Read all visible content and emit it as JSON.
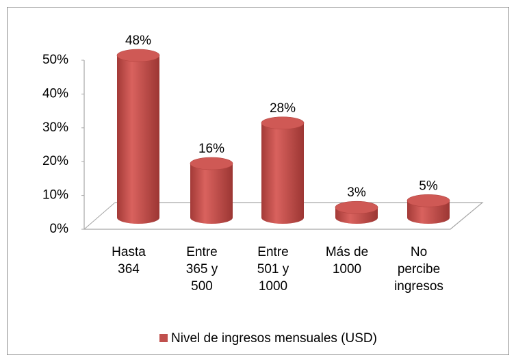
{
  "chart_data": {
    "type": "cylinder",
    "categories": [
      "Hasta 364",
      "Entre 365 y 500",
      "Entre 501 y 1000",
      "Más de 1000",
      "No percibe ingresos"
    ],
    "series": [
      {
        "name": "Nivel de ingresos mensuales (USD)",
        "color": "#c0504d",
        "values": [
          48,
          16,
          28,
          3,
          5
        ],
        "value_labels": [
          "48%",
          "16%",
          "28%",
          "3%",
          "5%"
        ]
      }
    ],
    "ylim": [
      0,
      50
    ],
    "yticks": [
      {
        "value": 0,
        "label": "0%"
      },
      {
        "value": 10,
        "label": "10%"
      },
      {
        "value": 20,
        "label": "20%"
      },
      {
        "value": 30,
        "label": "30%"
      },
      {
        "value": 40,
        "label": "40%"
      },
      {
        "value": 50,
        "label": "50%"
      }
    ],
    "legend": "bottom"
  }
}
